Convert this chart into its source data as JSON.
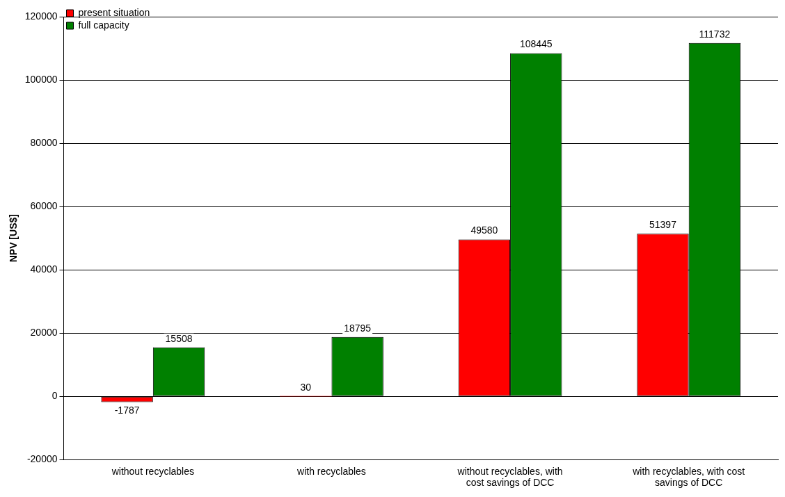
{
  "chart_data": {
    "type": "bar",
    "ylabel": "NPV [US$]",
    "categories": [
      "without recyclables",
      "with recyclables",
      "without recyclables, with cost savings of DCC",
      "with recyclables, with cost savings of DCC"
    ],
    "series": [
      {
        "name": "present situation",
        "color": "#ff0000",
        "values": [
          -1787,
          30,
          49580,
          51397
        ]
      },
      {
        "name": "full capacity",
        "color": "#008000",
        "values": [
          15508,
          18795,
          108445,
          111732
        ]
      }
    ],
    "ylim": [
      -20000,
      120000
    ],
    "yticks": [
      -20000,
      0,
      20000,
      40000,
      60000,
      80000,
      100000,
      120000
    ],
    "grid": "y",
    "legend": "top left",
    "data_labels": true
  }
}
